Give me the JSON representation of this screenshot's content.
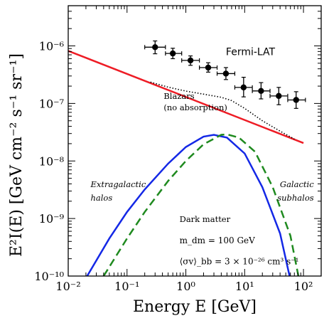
{
  "chart_data": {
    "type": "line",
    "xlabel": "Energy E [GeV]",
    "ylabel": "E²I(E) [GeV cm⁻² s⁻¹ sr⁻¹]",
    "xscale": "log",
    "yscale": "log",
    "xlim": [
      0.01,
      200
    ],
    "ylim": [
      1e-10,
      5e-06
    ],
    "x_ticks": [
      {
        "value": 0.01,
        "label": "10⁻²"
      },
      {
        "value": 0.1,
        "label": "10⁻¹"
      },
      {
        "value": 1,
        "label": "10⁰"
      },
      {
        "value": 10,
        "label": "10¹"
      },
      {
        "value": 100,
        "label": "10²"
      }
    ],
    "y_ticks": [
      {
        "value": 1e-10,
        "label": "10⁻¹⁰"
      },
      {
        "value": 1e-09,
        "label": "10⁻⁹"
      },
      {
        "value": 1e-08,
        "label": "10⁻⁸"
      },
      {
        "value": 1e-07,
        "label": "10⁻⁷"
      },
      {
        "value": 1e-06,
        "label": "10⁻⁶"
      }
    ],
    "series": [
      {
        "name": "Fermi-LAT",
        "style": "points-errorbars",
        "color": "#000000",
        "points": [
          {
            "x": 0.3,
            "y": 9.5e-07,
            "xlo": 0.2,
            "xhi": 0.45,
            "ylo": 7.3e-07,
            "yhi": 1.22e-06
          },
          {
            "x": 0.6,
            "y": 7.4e-07,
            "xlo": 0.45,
            "xhi": 0.85,
            "ylo": 6e-07,
            "yhi": 9.1e-07
          },
          {
            "x": 1.2,
            "y": 5.6e-07,
            "xlo": 0.85,
            "xhi": 1.7,
            "ylo": 4.6e-07,
            "yhi": 6.7e-07
          },
          {
            "x": 2.4,
            "y": 4.2e-07,
            "xlo": 1.7,
            "xhi": 3.4,
            "ylo": 3.5e-07,
            "yhi": 5.1e-07
          },
          {
            "x": 4.8,
            "y": 3.3e-07,
            "xlo": 3.4,
            "xhi": 6.8,
            "ylo": 2.6e-07,
            "yhi": 4.2e-07
          },
          {
            "x": 9.6,
            "y": 1.9e-07,
            "xlo": 6.8,
            "xhi": 13.5,
            "ylo": 1.3e-07,
            "yhi": 2.85e-07
          },
          {
            "x": 19,
            "y": 1.65e-07,
            "xlo": 13.5,
            "xhi": 27,
            "ylo": 1.2e-07,
            "yhi": 2.3e-07
          },
          {
            "x": 38,
            "y": 1.35e-07,
            "xlo": 27,
            "xhi": 54,
            "ylo": 9.5e-08,
            "yhi": 1.9e-07
          },
          {
            "x": 75,
            "y": 1.15e-07,
            "xlo": 54,
            "xhi": 108,
            "ylo": 8.2e-08,
            "yhi": 1.6e-07
          }
        ]
      },
      {
        "name": "Blazars (no absorption)",
        "style": "solid",
        "color": "#ee1c25",
        "x": [
          0.01,
          100
        ],
        "y": [
          8.2e-07,
          2.05e-08
        ]
      },
      {
        "name": "",
        "style": "dotted",
        "color": "#000000",
        "x": [
          0.25,
          0.5,
          1,
          2,
          4,
          6,
          10,
          20,
          40,
          70
        ],
        "y": [
          2.35e-07,
          1.92e-07,
          1.64e-07,
          1.45e-07,
          1.28e-07,
          1.12e-07,
          8.2e-08,
          5e-08,
          3.3e-08,
          2.4e-08
        ]
      },
      {
        "name": "Extragalactic halos",
        "style": "solid",
        "color": "#1428e6",
        "x": [
          0.021,
          0.05,
          0.1,
          0.2,
          0.5,
          1,
          2,
          3,
          5,
          10,
          20,
          40,
          58
        ],
        "y": [
          1e-10,
          4.5e-10,
          1.3e-09,
          3.2e-09,
          9e-09,
          1.75e-08,
          2.65e-08,
          2.85e-08,
          2.55e-08,
          1.35e-08,
          3.5e-09,
          5.5e-10,
          1e-10
        ]
      },
      {
        "name": "Galactic subhalos",
        "style": "dashed",
        "color": "#1f8a1f",
        "x": [
          0.04,
          0.1,
          0.2,
          0.5,
          1,
          2,
          4,
          5,
          8,
          15,
          30,
          60,
          82
        ],
        "y": [
          1e-10,
          4.5e-10,
          1.3e-09,
          4.5e-09,
          1e-08,
          1.95e-08,
          2.85e-08,
          2.9e-08,
          2.55e-08,
          1.45e-08,
          3.5e-09,
          5e-10,
          1e-10
        ]
      }
    ],
    "annotations": [
      {
        "text": "Fermi-LAT",
        "x": 4.8,
        "y": 6.9e-07
      },
      {
        "text": "Blazars",
        "x": 0.42,
        "y": 1.2e-07
      },
      {
        "text": "(no absorption)",
        "x": 0.42,
        "y": 7.6e-08
      },
      {
        "text": "Extragalactic",
        "x": 0.024,
        "y": 3.5e-09
      },
      {
        "text": "halos",
        "x": 0.024,
        "y": 2.05e-09
      },
      {
        "text": "Galactic",
        "x": 150,
        "y": 3.5e-09
      },
      {
        "text": "subhalos",
        "x": 150,
        "y": 2.05e-09
      },
      {
        "text": "Dark matter",
        "x": 0.78,
        "y": 8.7e-10
      },
      {
        "text": "m_dm = 100 GeV",
        "x": 0.78,
        "y": 3.7e-10
      },
      {
        "text": "⟨σv⟩_bb = 3 × 10⁻²⁶ cm³ s⁻¹",
        "x": 0.78,
        "y": 1.6e-10
      }
    ]
  }
}
